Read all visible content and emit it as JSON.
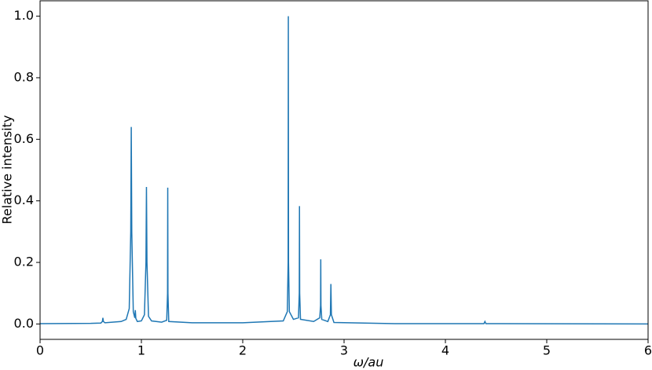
{
  "chart_data": {
    "type": "line",
    "xlabel": "ω/au",
    "ylabel": "Relative intensity",
    "x": [
      0,
      0.5,
      0.6,
      0.615,
      0.62,
      0.625,
      0.64,
      0.8,
      0.85,
      0.88,
      0.895,
      0.9,
      0.905,
      0.92,
      0.935,
      0.94,
      0.945,
      0.96,
      1.0,
      1.03,
      1.045,
      1.05,
      1.055,
      1.07,
      1.1,
      1.2,
      1.25,
      1.258,
      1.26,
      1.262,
      1.27,
      1.5,
      2.0,
      2.4,
      2.44,
      2.448,
      2.45,
      2.452,
      2.46,
      2.5,
      2.55,
      2.558,
      2.56,
      2.562,
      2.57,
      2.7,
      2.76,
      2.768,
      2.77,
      2.772,
      2.78,
      2.84,
      2.865,
      2.87,
      2.875,
      2.9,
      3.5,
      4.38,
      4.39,
      4.4,
      6
    ],
    "series": [
      {
        "color": "#1f77b4",
        "values": [
          0.001,
          0.002,
          0.003,
          0.008,
          0.02,
          0.008,
          0.004,
          0.008,
          0.015,
          0.05,
          0.3,
          0.64,
          0.3,
          0.04,
          0.02,
          0.045,
          0.018,
          0.008,
          0.01,
          0.03,
          0.2,
          0.445,
          0.2,
          0.025,
          0.01,
          0.006,
          0.012,
          0.1,
          0.443,
          0.1,
          0.008,
          0.004,
          0.004,
          0.01,
          0.04,
          0.2,
          1.0,
          0.2,
          0.04,
          0.015,
          0.02,
          0.1,
          0.383,
          0.1,
          0.015,
          0.008,
          0.02,
          0.06,
          0.21,
          0.06,
          0.015,
          0.008,
          0.03,
          0.13,
          0.03,
          0.005,
          0.001,
          0.001,
          0.008,
          0.001,
          0
        ]
      }
    ],
    "xlim": [
      0,
      6
    ],
    "xticks": [
      0,
      1,
      2,
      3,
      4,
      5,
      6
    ],
    "ylim": [
      -0.05,
      1.05
    ],
    "yticks": [
      {
        "value": 0,
        "label": "0.0"
      },
      0.2,
      0.4,
      0.6,
      0.8,
      {
        "value": 1,
        "label": "1.0"
      }
    ]
  }
}
